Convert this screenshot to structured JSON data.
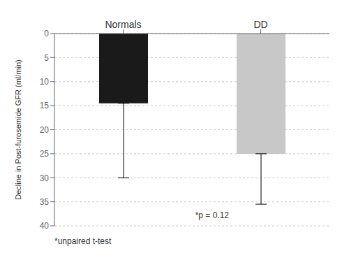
{
  "chart_data": {
    "type": "bar",
    "categories": [
      "Normals",
      "DD"
    ],
    "values": [
      14.5,
      25.0
    ],
    "error_down": [
      15.5,
      10.5
    ],
    "colors": [
      "#1a1a1a",
      "#c8c8c8"
    ],
    "ylabel": "Decline in Post-furosemide GFR (ml/min)",
    "ylim": [
      40,
      0
    ],
    "yticks": [
      0,
      5,
      10,
      15,
      20,
      25,
      30,
      35,
      40
    ],
    "annotation": "*p = 0.12",
    "footnote": "*unpaired t-test"
  }
}
